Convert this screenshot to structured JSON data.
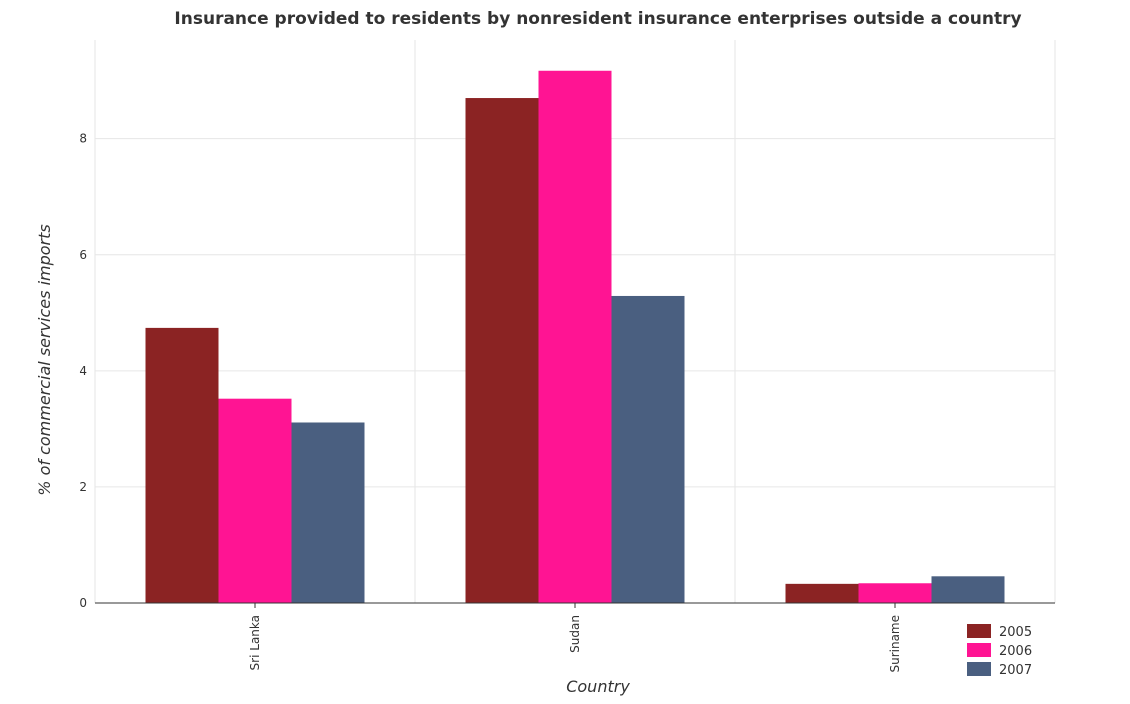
{
  "chart_data": {
    "type": "bar",
    "title": "Insurance provided to residents by nonresident insurance enterprises outside a country",
    "xlabel": "Country",
    "ylabel": "% of commercial services imports",
    "categories": [
      "Sri Lanka",
      "Sudan",
      "Suriname"
    ],
    "series": [
      {
        "name": "2005",
        "color": "#8b2323",
        "values": [
          4.74,
          8.7,
          0.33
        ]
      },
      {
        "name": "2006",
        "color": "#ff1493",
        "values": [
          3.52,
          9.17,
          0.34
        ]
      },
      {
        "name": "2007",
        "color": "#4a5f80",
        "values": [
          3.11,
          5.29,
          0.46
        ]
      }
    ],
    "ylim": [
      0,
      9.7
    ],
    "yticks": [
      0,
      2,
      4,
      6,
      8
    ],
    "ytick_labels": [
      "0",
      "2",
      "4",
      "6",
      "8"
    ],
    "grid": true,
    "legend_position": "bottom-right"
  }
}
